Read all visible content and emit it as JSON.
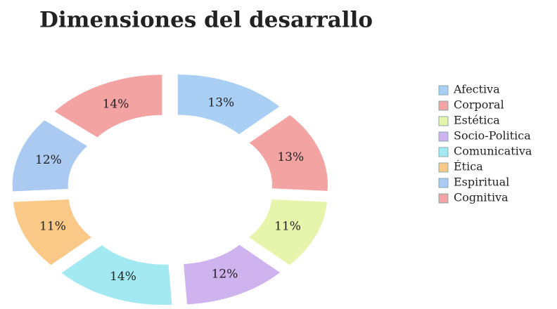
{
  "chart_data": {
    "type": "doughnut",
    "title": "Dimensiones del desarrallo",
    "categories": [
      "Afectiva",
      "Corporal",
      "Estética",
      "Socio-Politica",
      "Comunicativa",
      "Ética",
      "Espiritual",
      "Cognitiva"
    ],
    "values": [
      13,
      13,
      11,
      12,
      14,
      11,
      12,
      14
    ],
    "value_labels": [
      "13%",
      "13%",
      "11%",
      "12%",
      "14%",
      "11%",
      "12%",
      "14%"
    ],
    "colors": [
      "#a9cff5",
      "#f4a3a3",
      "#e6f5ab",
      "#cfb3ee",
      "#a3e9f2",
      "#fbc987",
      "#aacaf2",
      "#f4a3a3"
    ],
    "legend": "right"
  }
}
